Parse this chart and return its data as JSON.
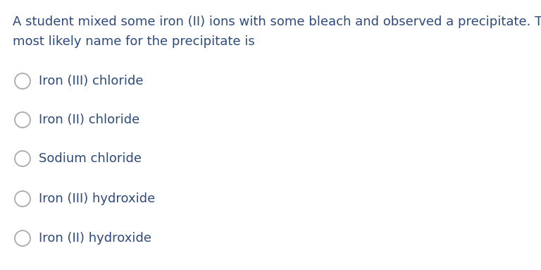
{
  "question_text_line1": "A student mixed some iron (II) ions with some bleach and observed a precipitate. The",
  "question_text_line2": "most likely name for the precipitate is",
  "options": [
    "Iron (III) chloride",
    "Iron (II) chloride",
    "Sodium chloride",
    "Iron (III) hydroxide",
    "Iron (II) hydroxide"
  ],
  "question_color": "#2e4a7a",
  "option_color": "#2e4a7a",
  "background_color": "#ffffff",
  "question_fontsize": 13.0,
  "option_fontsize": 13.0,
  "circle_color": "#aaaaaa",
  "fig_width": 7.68,
  "fig_height": 3.83,
  "dpi": 100
}
